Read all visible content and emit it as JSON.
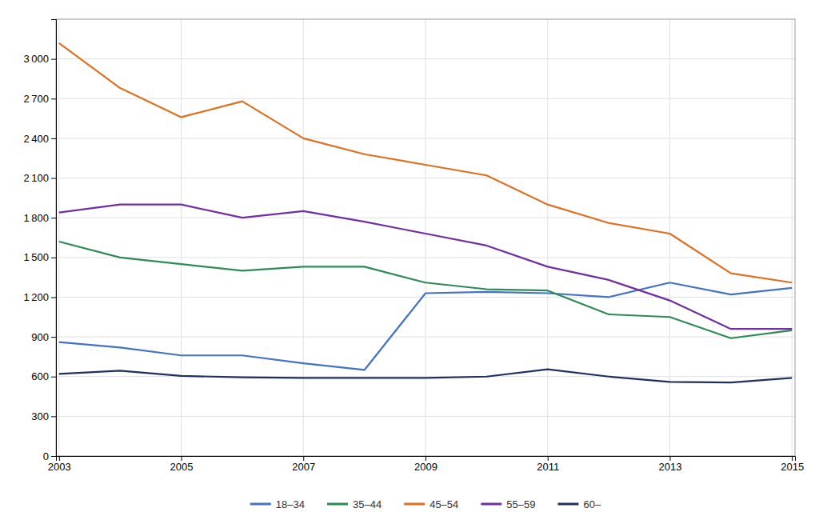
{
  "chart_data": {
    "type": "line",
    "x": [
      2003,
      2004,
      2005,
      2006,
      2007,
      2008,
      2009,
      2010,
      2011,
      2012,
      2013,
      2014,
      2015
    ],
    "series": [
      {
        "name": "18–34",
        "color": "#4472C4",
        "values": [
          860,
          820,
          760,
          760,
          700,
          650,
          1230,
          1240,
          1230,
          1200,
          1310,
          1220,
          1270
        ]
      },
      {
        "name": "35–44",
        "color": "#2E8B57",
        "values": [
          1620,
          1500,
          1450,
          1400,
          1430,
          1430,
          1310,
          1260,
          1250,
          1070,
          1050,
          890,
          950
        ]
      },
      {
        "name": "45–54",
        "color": "#E07020",
        "values": [
          3120,
          2780,
          2560,
          2680,
          2400,
          2280,
          2200,
          2120,
          1900,
          1760,
          1680,
          1380,
          1310
        ]
      },
      {
        "name": "55–59",
        "color": "#7030A0",
        "values": [
          1840,
          1900,
          1900,
          1800,
          1850,
          1770,
          1680,
          1590,
          1430,
          1330,
          1175,
          960,
          960
        ]
      },
      {
        "name": "60–",
        "color": "#203060",
        "values": [
          620,
          645,
          605,
          595,
          590,
          590,
          590,
          600,
          655,
          600,
          560,
          555,
          590
        ]
      }
    ],
    "xlim": [
      2002.95,
      2015.05
    ],
    "xticks": [
      2003,
      2005,
      2007,
      2009,
      2011,
      2013,
      2015
    ],
    "ylim": [
      0,
      3300
    ],
    "yticks": [
      0,
      300,
      600,
      900,
      {
        "value": 1200,
        "label": "1 200"
      },
      {
        "value": 1500,
        "label": "1 500"
      },
      {
        "value": 1800,
        "label": "1 800"
      },
      {
        "value": 2100,
        "label": "2 100"
      },
      {
        "value": 2400,
        "label": "2 400"
      },
      {
        "value": 2700,
        "label": "2 700"
      },
      {
        "value": 3000,
        "label": "3 000"
      }
    ],
    "grid": true,
    "legend": "bottom"
  }
}
